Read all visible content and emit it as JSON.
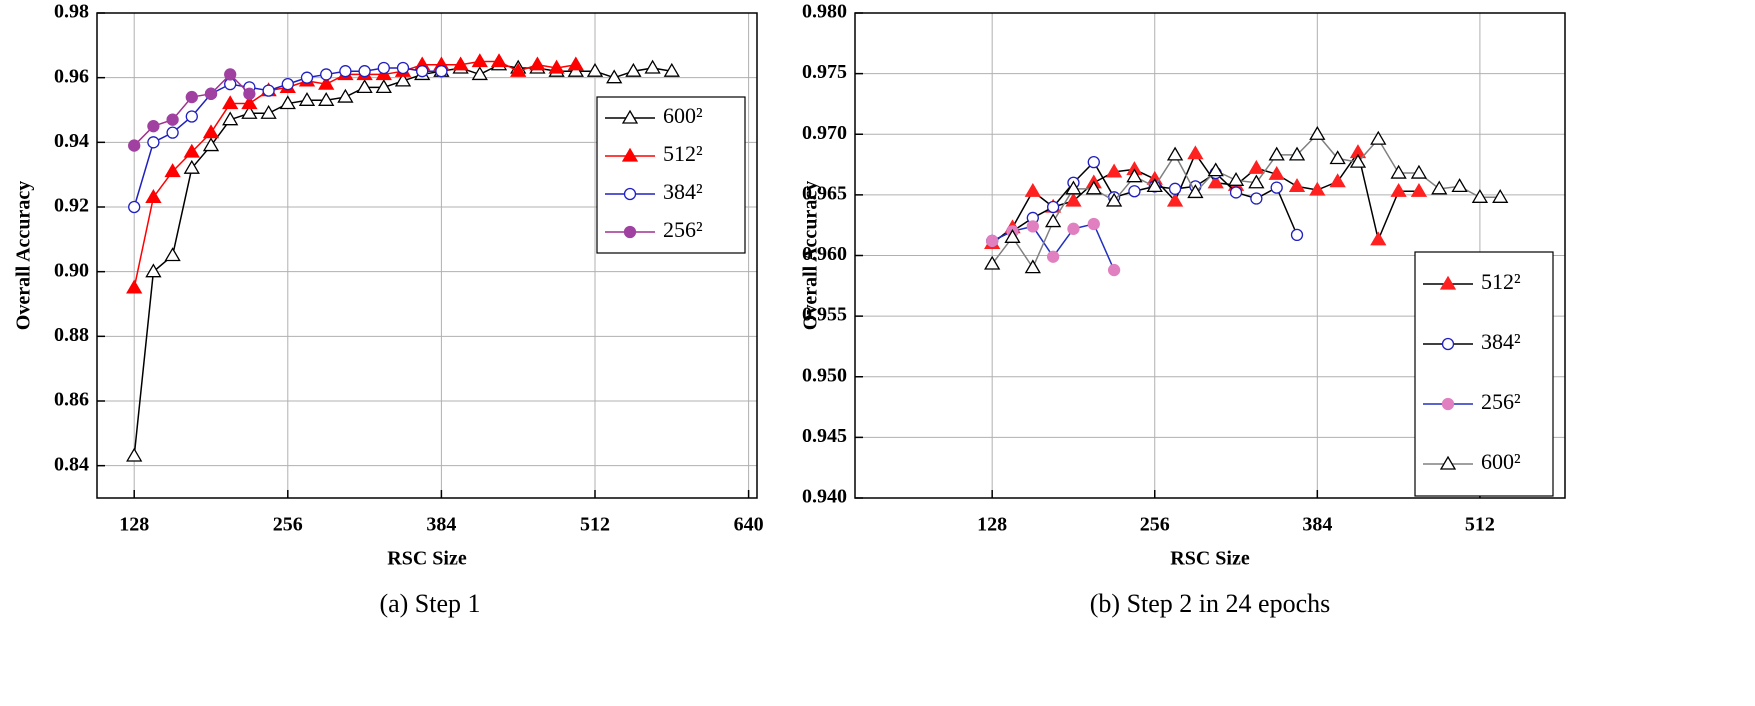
{
  "chart_data": [
    {
      "type": "line",
      "caption": "(a) Step 1",
      "xlabel": "RSC Size",
      "ylabel": "Overall Accuracy",
      "xlim": [
        97,
        647
      ],
      "ylim": [
        0.83,
        0.98
      ],
      "xticks": [
        128,
        256,
        384,
        512,
        640
      ],
      "yticks": [
        0.84,
        0.86,
        0.88,
        {
          "value": 0.9,
          "label": "0.90"
        },
        0.92,
        0.94,
        0.96,
        0.98
      ],
      "grid": true,
      "legend": "right",
      "series": [
        {
          "name": "600²",
          "color": "#000000",
          "marker_color": "#ffffff",
          "marker": "triangle",
          "x": [
            128,
            144,
            160,
            176,
            192,
            208,
            224,
            240,
            256,
            272,
            288,
            304,
            320,
            336,
            352,
            368,
            384,
            400,
            416,
            432,
            448,
            464,
            480,
            496,
            512,
            528,
            544,
            560,
            576
          ],
          "values": [
            0.843,
            0.9,
            0.905,
            0.932,
            0.939,
            0.947,
            0.949,
            0.949,
            0.952,
            0.953,
            0.953,
            0.954,
            0.957,
            0.957,
            0.959,
            0.961,
            0.962,
            0.963,
            0.961,
            0.964,
            0.963,
            0.963,
            0.962,
            0.962,
            0.962,
            0.96,
            0.962,
            0.963,
            0.962
          ]
        },
        {
          "name": "512²",
          "color": "#ff0000",
          "marker_color": "#ff0000",
          "marker": "triangle",
          "x": [
            128,
            144,
            160,
            176,
            192,
            208,
            224,
            240,
            256,
            272,
            288,
            304,
            320,
            336,
            352,
            368,
            384,
            400,
            416,
            432,
            448,
            464,
            480,
            496
          ],
          "values": [
            0.895,
            0.923,
            0.931,
            0.937,
            0.943,
            0.952,
            0.952,
            0.956,
            0.957,
            0.959,
            0.958,
            0.961,
            0.961,
            0.961,
            0.962,
            0.964,
            0.964,
            0.964,
            0.965,
            0.965,
            0.962,
            0.964,
            0.963,
            0.964
          ]
        },
        {
          "name": "384²",
          "color": "#2020c0",
          "marker_color": "#ffffff",
          "marker": "circle",
          "x": [
            128,
            144,
            160,
            176,
            192,
            208,
            224,
            240,
            256,
            272,
            288,
            304,
            320,
            336,
            352,
            368,
            384
          ],
          "values": [
            0.92,
            0.94,
            0.943,
            0.948,
            0.955,
            0.958,
            0.957,
            0.956,
            0.958,
            0.96,
            0.961,
            0.962,
            0.962,
            0.963,
            0.963,
            0.962,
            0.962
          ]
        },
        {
          "name": "256²",
          "color": "#a03090",
          "marker_color": "#a040a0",
          "marker": "circle",
          "x": [
            128,
            144,
            160,
            176,
            192,
            208,
            224
          ],
          "values": [
            0.939,
            0.945,
            0.947,
            0.954,
            0.955,
            0.961,
            0.955
          ]
        }
      ]
    },
    {
      "type": "line",
      "caption": "(b) Step 2 in 24 epochs",
      "xlabel": "RSC Size",
      "ylabel": "Overall Accuracy",
      "xlim": [
        20,
        579
      ],
      "ylim": [
        0.94,
        0.98
      ],
      "xticks": [
        128,
        256,
        384,
        512
      ],
      "yticks": [
        {
          "value": 0.94,
          "label": "0.940"
        },
        {
          "value": 0.945,
          "label": "0.945"
        },
        {
          "value": 0.95,
          "label": "0.950"
        },
        {
          "value": 0.955,
          "label": "0.955"
        },
        {
          "value": 0.96,
          "label": "0.960"
        },
        {
          "value": 0.965,
          "label": "0.965"
        },
        {
          "value": 0.97,
          "label": "0.970"
        },
        {
          "value": 0.975,
          "label": "0.975"
        },
        {
          "value": 0.98,
          "label": "0.980"
        }
      ],
      "grid": true,
      "legend": "lower right",
      "series": [
        {
          "name": "512²",
          "color": "#000000",
          "marker_color": "#ff2020",
          "marker": "triangle",
          "x": [
            128,
            144,
            160,
            176,
            192,
            208,
            224,
            240,
            256,
            272,
            288,
            304,
            320,
            336,
            352,
            368,
            384,
            400,
            416,
            432,
            448,
            464
          ],
          "values": [
            0.961,
            0.9623,
            0.9653,
            0.964,
            0.9645,
            0.966,
            0.9669,
            0.9671,
            0.9663,
            0.9645,
            0.9684,
            0.966,
            0.9658,
            0.9672,
            0.9667,
            0.9657,
            0.9654,
            0.9661,
            0.9685,
            0.9613,
            0.9653,
            0.9653
          ]
        },
        {
          "name": "384²",
          "color": "#000000",
          "marker_color": "#ffffff",
          "marker": "circle",
          "edge": "#2020c0",
          "x": [
            128,
            144,
            160,
            176,
            192,
            208,
            224,
            240,
            256,
            272,
            288,
            304,
            320,
            336,
            352,
            368
          ],
          "values": [
            0.9612,
            0.962,
            0.9631,
            0.964,
            0.966,
            0.9677,
            0.9648,
            0.9653,
            0.9657,
            0.9655,
            0.9657,
            0.9668,
            0.9652,
            0.9647,
            0.9656,
            0.9617
          ]
        },
        {
          "name": "256²",
          "color": "#2030c0",
          "marker_color": "#e080c0",
          "marker": "circle",
          "x": [
            128,
            144,
            160,
            176,
            192,
            208,
            224
          ],
          "values": [
            0.9612,
            0.962,
            0.9624,
            0.9599,
            0.9622,
            0.9626,
            0.9588
          ]
        },
        {
          "name": "600²",
          "color": "#808080",
          "marker_color": "#ffffff",
          "marker": "triangle",
          "edge": "#000000",
          "x": [
            128,
            144,
            160,
            176,
            192,
            208,
            224,
            240,
            256,
            272,
            288,
            304,
            320,
            336,
            352,
            368,
            384,
            400,
            416,
            432,
            448,
            464,
            480,
            496,
            512,
            528
          ],
          "values": [
            0.9593,
            0.9615,
            0.959,
            0.9628,
            0.9655,
            0.9655,
            0.9645,
            0.9665,
            0.9657,
            0.9683,
            0.9652,
            0.967,
            0.9662,
            0.966,
            0.9683,
            0.9683,
            0.97,
            0.968,
            0.9677,
            0.9696,
            0.9668,
            0.9668,
            0.9655,
            0.9657,
            0.9648,
            0.9648
          ]
        }
      ]
    }
  ]
}
